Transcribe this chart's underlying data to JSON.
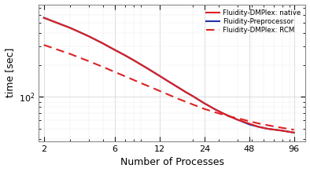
{
  "x_ticks": [
    2,
    6,
    12,
    24,
    48,
    96
  ],
  "x_dense": [
    2,
    3,
    4,
    5,
    6,
    7,
    8,
    9,
    10,
    12,
    14,
    16,
    18,
    20,
    24,
    28,
    32,
    36,
    40,
    48,
    56,
    64,
    80,
    96
  ],
  "rcm_y": [
    310,
    255,
    218,
    192,
    172,
    157,
    145,
    135,
    127,
    114,
    104,
    96,
    90,
    85,
    77,
    72,
    68,
    65,
    63,
    59,
    56,
    54,
    51,
    49
  ],
  "native_y": [
    560,
    450,
    375,
    320,
    278,
    248,
    223,
    202,
    185,
    158,
    138,
    123,
    111,
    102,
    87,
    77,
    70,
    65,
    61,
    56,
    52,
    50,
    48,
    46
  ],
  "preproc_y": [
    560,
    450,
    375,
    320,
    278,
    248,
    223,
    202,
    185,
    158,
    138,
    123,
    111,
    102,
    87,
    77,
    70,
    65,
    61,
    55,
    52,
    50,
    48,
    46
  ],
  "xlabel": "Number of Processes",
  "ylabel": "time [sec]",
  "legend": [
    "Fluidity-DMPlex: RCM",
    "Fluidity-DMPlex: native",
    "Fluidity-Preprocessor"
  ],
  "rcm_color": "#dd2222",
  "native_color": "#dd2222",
  "preproc_color": "#2233aa",
  "ylim_bottom": 38,
  "ylim_top": 750,
  "bg_color": "#ffffff"
}
